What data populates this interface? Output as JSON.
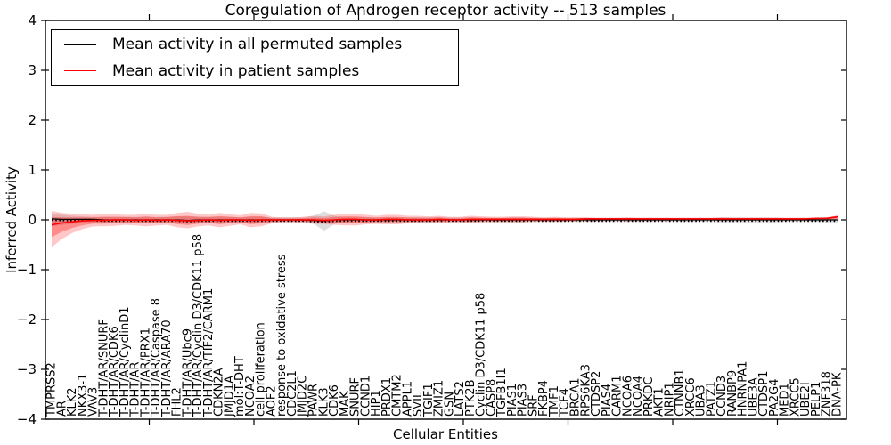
{
  "chart_data": {
    "type": "line",
    "title": "Coregulation of Androgen receptor activity -- 513 samples",
    "xlabel": "Cellular Entities",
    "ylabel": "Inferred Activity",
    "ylim": [
      -4,
      4
    ],
    "y_ticks": [
      4,
      3,
      2,
      1,
      0,
      -1,
      -2,
      -3,
      -4
    ],
    "grid": "off",
    "legend_position": "upper left",
    "entities": [
      "TMPRSS2",
      "AR",
      "KLK2",
      "NKX3-1",
      "VAV3",
      "T-DHT/AR/SNURF",
      "T-DHT/AR/CDK6",
      "T-DHT/AR/CyclinD1",
      "T-DHT/AR",
      "T-DHT/AR/PRX1",
      "T-DHT/AR/Caspase 8",
      "T-DHT/AR/ARA70",
      "FHL2",
      "T-DHT/AR/Ubc9",
      "T-DHT/AR/Cyclin D3/CDK11 p58",
      "T-DHT/AR/TIF2/CARM1",
      "CDKN2A",
      "JMJD1A",
      "mol:T-DHT",
      "NCOA2",
      "cell proliferation",
      "AOF2",
      "response to oxidative stress",
      "CDC2L1",
      "JMJD2C",
      "PAWR",
      "KLK3",
      "CDK6",
      "MAK",
      "SNURF",
      "CCND1",
      "HIP1",
      "PRDX1",
      "CMTM2",
      "APPL1",
      "SVIL",
      "TGIF1",
      "ZMIZ1",
      "GSN",
      "LATS2",
      "PTK2B",
      "Cyclin D3/CDK11 p58",
      "CASP8",
      "TGFB1I1",
      "PIAS1",
      "PIAS3",
      "SRF",
      "FKBP4",
      "TMF1",
      "TCF4",
      "BRCA1",
      "RPS6KA3",
      "CTDSP2",
      "PIAS4",
      "CARM1",
      "NCOA6",
      "NCOA4",
      "PRKDC",
      "AKT1",
      "NRIP1",
      "CTNNB1",
      "XRCC6",
      "UBA3",
      "PATZ1",
      "CCND3",
      "RANBP9",
      "HNRNPA1",
      "UBE3A",
      "CTDSP1",
      "PA2G4",
      "MED1",
      "XRCC5",
      "UBE2I",
      "PELP1",
      "ZNF318",
      "DNA-PK"
    ],
    "series": [
      {
        "name": "Mean activity in all permuted samples",
        "color": "#000000",
        "band_color": "#000000",
        "values": [
          0.02,
          0.01,
          0.01,
          0.01,
          0.01,
          0.0,
          0.0,
          0.0,
          0.0,
          0.0,
          0.0,
          0.0,
          0.0,
          -0.01,
          0.0,
          0.0,
          0.0,
          0.0,
          0.0,
          0.0,
          0.0,
          0.0,
          0.0,
          0.0,
          0.0,
          -0.01,
          -0.02,
          0.0,
          0.0,
          0.0,
          0.0,
          0.0,
          0.0,
          0.0,
          0.0,
          0.0,
          0.0,
          0.0,
          0.0,
          0.0,
          0.0,
          0.0,
          0.0,
          0.0,
          0.0,
          0.0,
          0.0,
          0.0,
          0.0,
          0.0,
          0.0,
          0.0,
          0.0,
          0.0,
          0.0,
          0.0,
          0.0,
          0.0,
          0.0,
          0.0,
          0.0,
          0.0,
          0.0,
          0.0,
          0.0,
          0.0,
          0.0,
          0.0,
          0.0,
          0.0,
          0.0,
          0.0,
          0.0,
          0.0,
          0.0,
          0.0
        ],
        "band_upper": [
          0.12,
          0.1,
          0.08,
          0.07,
          0.06,
          0.06,
          0.06,
          0.06,
          0.06,
          0.06,
          0.06,
          0.06,
          0.07,
          0.07,
          0.06,
          0.06,
          0.06,
          0.06,
          0.05,
          0.06,
          0.06,
          0.05,
          0.05,
          0.05,
          0.05,
          0.08,
          0.17,
          0.08,
          0.05,
          0.05,
          0.05,
          0.05,
          0.05,
          0.05,
          0.05,
          0.05,
          0.05,
          0.05,
          0.05,
          0.05,
          0.05,
          0.04,
          0.04,
          0.04,
          0.05,
          0.05,
          0.04,
          0.04,
          0.04,
          0.04,
          0.04,
          0.04,
          0.04,
          0.04,
          0.04,
          0.04,
          0.04,
          0.04,
          0.04,
          0.04,
          0.04,
          0.04,
          0.04,
          0.04,
          0.05,
          0.05,
          0.05,
          0.05,
          0.05,
          0.05,
          0.04,
          0.04,
          0.04,
          0.04,
          0.05,
          0.05
        ],
        "band_lower": [
          -0.12,
          -0.1,
          -0.08,
          -0.07,
          -0.06,
          -0.06,
          -0.06,
          -0.06,
          -0.06,
          -0.06,
          -0.06,
          -0.06,
          -0.07,
          -0.07,
          -0.06,
          -0.06,
          -0.06,
          -0.06,
          -0.05,
          -0.06,
          -0.06,
          -0.05,
          -0.05,
          -0.05,
          -0.05,
          -0.08,
          -0.22,
          -0.08,
          -0.05,
          -0.05,
          -0.05,
          -0.05,
          -0.05,
          -0.05,
          -0.05,
          -0.05,
          -0.05,
          -0.05,
          -0.05,
          -0.05,
          -0.05,
          -0.04,
          -0.04,
          -0.04,
          -0.05,
          -0.05,
          -0.04,
          -0.04,
          -0.04,
          -0.04,
          -0.04,
          -0.04,
          -0.04,
          -0.04,
          -0.04,
          -0.04,
          -0.04,
          -0.04,
          -0.04,
          -0.04,
          -0.04,
          -0.04,
          -0.04,
          -0.04,
          -0.05,
          -0.05,
          -0.05,
          -0.05,
          -0.05,
          -0.05,
          -0.04,
          -0.04,
          -0.04,
          -0.04,
          -0.05,
          -0.05
        ]
      },
      {
        "name": "Mean activity in patient samples",
        "color": "#ff0000",
        "band_color": "#ff0000",
        "values": [
          -0.1,
          -0.06,
          -0.04,
          -0.02,
          -0.01,
          -0.01,
          0.0,
          0.0,
          -0.01,
          0.0,
          -0.01,
          0.0,
          -0.01,
          -0.02,
          -0.01,
          0.0,
          -0.01,
          0.0,
          0.0,
          -0.01,
          0.0,
          0.0,
          0.0,
          0.0,
          0.0,
          0.0,
          -0.01,
          0.0,
          0.01,
          0.01,
          0.0,
          0.0,
          0.01,
          0.01,
          0.0,
          0.0,
          0.0,
          0.01,
          0.0,
          0.0,
          0.01,
          0.01,
          0.01,
          0.01,
          0.01,
          0.01,
          0.01,
          0.01,
          0.01,
          0.01,
          0.01,
          0.02,
          0.02,
          0.02,
          0.02,
          0.02,
          0.02,
          0.02,
          0.02,
          0.02,
          0.02,
          0.02,
          0.02,
          0.02,
          0.02,
          0.02,
          0.02,
          0.02,
          0.02,
          0.02,
          0.02,
          0.02,
          0.02,
          0.03,
          0.03,
          0.06
        ],
        "band_upper": [
          0.18,
          0.14,
          0.12,
          0.11,
          0.1,
          0.12,
          0.11,
          0.1,
          0.1,
          0.12,
          0.1,
          0.1,
          0.14,
          0.16,
          0.12,
          0.1,
          0.14,
          0.11,
          0.09,
          0.14,
          0.13,
          0.06,
          0.05,
          0.05,
          0.06,
          0.08,
          0.07,
          0.1,
          0.12,
          0.12,
          0.1,
          0.08,
          0.1,
          0.1,
          0.08,
          0.08,
          0.07,
          0.08,
          0.06,
          0.06,
          0.08,
          0.07,
          0.06,
          0.06,
          0.07,
          0.07,
          0.06,
          0.05,
          0.06,
          0.05,
          0.05,
          0.05,
          0.04,
          0.04,
          0.04,
          0.05,
          0.04,
          0.04,
          0.04,
          0.04,
          0.04,
          0.04,
          0.04,
          0.04,
          0.05,
          0.04,
          0.04,
          0.04,
          0.04,
          0.04,
          0.04,
          0.04,
          0.04,
          0.04,
          0.05,
          0.09
        ],
        "band_lower": [
          -0.55,
          -0.38,
          -0.26,
          -0.18,
          -0.13,
          -0.13,
          -0.12,
          -0.1,
          -0.11,
          -0.13,
          -0.11,
          -0.1,
          -0.15,
          -0.17,
          -0.13,
          -0.11,
          -0.15,
          -0.12,
          -0.09,
          -0.15,
          -0.13,
          -0.07,
          -0.05,
          -0.05,
          -0.06,
          -0.08,
          -0.08,
          -0.1,
          -0.11,
          -0.11,
          -0.09,
          -0.08,
          -0.09,
          -0.09,
          -0.07,
          -0.07,
          -0.06,
          -0.07,
          -0.05,
          -0.05,
          -0.07,
          -0.05,
          -0.05,
          -0.05,
          -0.05,
          -0.05,
          -0.04,
          -0.04,
          -0.04,
          -0.04,
          -0.03,
          -0.03,
          -0.02,
          -0.02,
          -0.02,
          -0.03,
          -0.02,
          -0.02,
          -0.02,
          -0.02,
          -0.01,
          -0.01,
          -0.01,
          -0.01,
          -0.02,
          -0.01,
          -0.01,
          -0.01,
          -0.01,
          -0.01,
          -0.01,
          -0.01,
          -0.01,
          -0.01,
          -0.01,
          0.01
        ]
      }
    ]
  }
}
